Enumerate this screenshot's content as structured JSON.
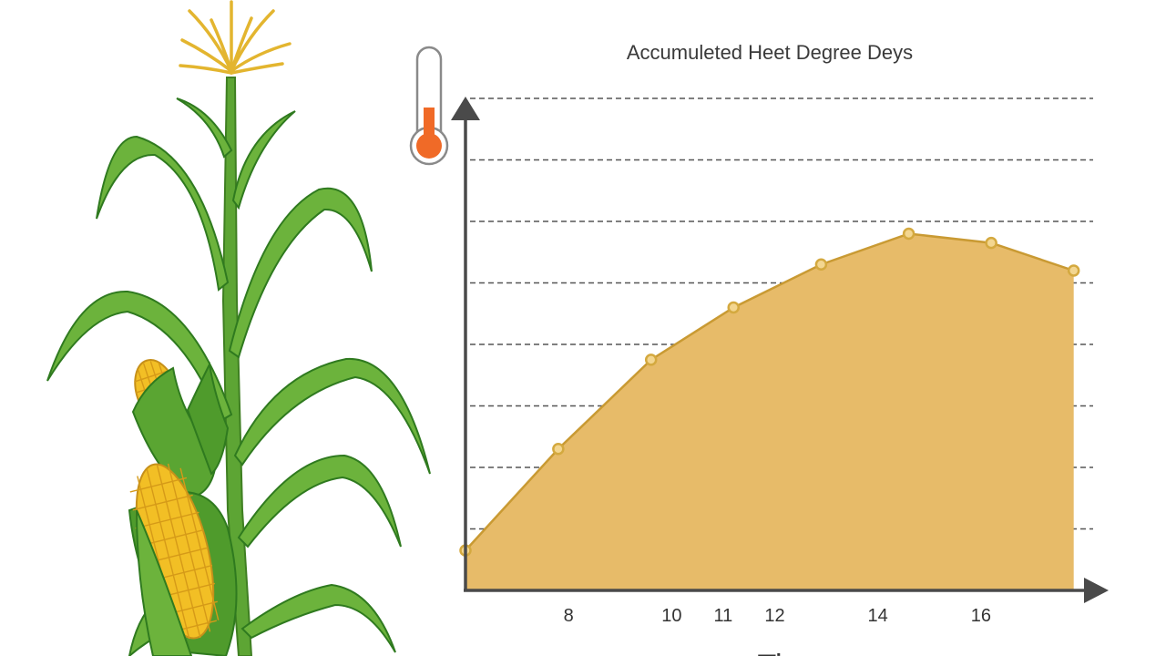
{
  "chart_data": {
    "type": "area",
    "title": "Accumuleted Heet Degree Deys",
    "xlabel": "Ti",
    "ylabel": "",
    "x_tick_labels": [
      {
        "x": 8,
        "label": "8"
      },
      {
        "x": 10,
        "label": "10"
      },
      {
        "x": 11,
        "label": "11"
      },
      {
        "x": 12,
        "label": "12"
      },
      {
        "x": 14,
        "label": "14"
      },
      {
        "x": 16,
        "label": "16"
      }
    ],
    "xlim": [
      6.0,
      18.0
    ],
    "ylim": [
      0,
      8.0
    ],
    "y_tick_labels": [],
    "grid": "horizontal-dashed",
    "series": [
      {
        "x": [
          6.0,
          7.8,
          9.6,
          11.2,
          12.9,
          14.6,
          16.2,
          17.8
        ],
        "values": [
          0.65,
          2.3,
          3.75,
          4.6,
          5.3,
          5.8,
          5.65,
          5.2
        ]
      }
    ],
    "colors": {
      "area_fill": "#e7bb69",
      "line": "#c99a33",
      "marker": "#d4a93f",
      "axis": "#4a4a4a",
      "grid": "#555555"
    }
  },
  "decorations": {
    "plant": "corn-plant-illustration",
    "thermometer": "thermometer-icon",
    "thermometer_fill": "#f06a27"
  }
}
